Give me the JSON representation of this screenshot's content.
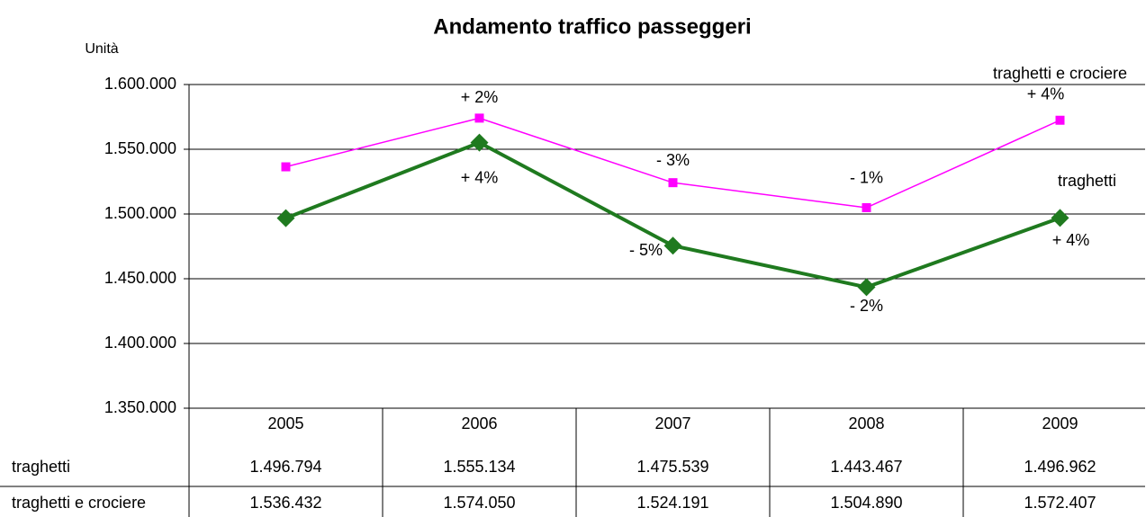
{
  "chart_data": {
    "type": "line",
    "title": "Andamento traffico passeggeri",
    "y_label": "Unità",
    "categories": [
      "2005",
      "2006",
      "2007",
      "2008",
      "2009"
    ],
    "ylim": [
      1350000,
      1600000
    ],
    "yticks": [
      {
        "value": 1350000,
        "label": "1.350.000"
      },
      {
        "value": 1400000,
        "label": "1.400.000"
      },
      {
        "value": 1450000,
        "label": "1.450.000"
      },
      {
        "value": 1500000,
        "label": "1.500.000"
      },
      {
        "value": 1550000,
        "label": "1.550.000"
      },
      {
        "value": 1600000,
        "label": "1.600.000"
      }
    ],
    "grid": true,
    "series": [
      {
        "name": "traghetti",
        "color": "#1f7a1f",
        "marker": "diamond",
        "values": [
          1496794,
          1555134,
          1475539,
          1443467,
          1496962
        ],
        "value_labels": [
          "1.496.794",
          "1.555.134",
          "1.475.539",
          "1.443.467",
          "1.496.962"
        ],
        "annotations": [
          null,
          "+ 4%",
          "- 5%",
          "- 2%",
          "+ 4%"
        ]
      },
      {
        "name": "traghetti e crociere",
        "color": "#ff00ff",
        "marker": "square",
        "values": [
          1536432,
          1574050,
          1524191,
          1504890,
          1572407
        ],
        "value_labels": [
          "1.536.432",
          "1.574.050",
          "1.524.191",
          "1.504.890",
          "1.572.407"
        ],
        "annotations": [
          null,
          "+ 2%",
          "- 3%",
          "- 1%",
          "+ 4%"
        ]
      }
    ]
  }
}
